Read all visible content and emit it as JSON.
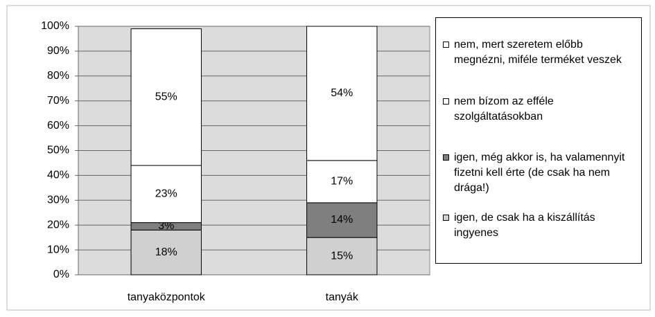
{
  "chart_data": {
    "type": "stacked_bar",
    "categories": [
      "tanyaközpontok",
      "tanyák"
    ],
    "series": [
      {
        "name": "igen, de csak ha a kiszállítás ingyenes",
        "color": "#d0d0d0",
        "values": [
          18,
          15
        ],
        "value_labels": [
          "18%",
          "15%"
        ]
      },
      {
        "name": "igen, még akkor is, ha valamennyit fizetni kell érte (de csak ha nem drága!)",
        "color": "#7f7f7f",
        "values": [
          3,
          14
        ],
        "value_labels": [
          "3%",
          "14%"
        ]
      },
      {
        "name": "nem bízom az efféle szolgáltatásokban",
        "color": "#ffffff",
        "values": [
          23,
          17
        ],
        "value_labels": [
          "23%",
          "17%"
        ]
      },
      {
        "name": "nem, mert szeretem előbb megnézni, miféle terméket veszek",
        "color": "#ffffff",
        "values": [
          55,
          54
        ],
        "value_labels": [
          "55%",
          "54%"
        ]
      }
    ],
    "ylim": [
      0,
      100
    ],
    "yticks": [
      {
        "value": 0,
        "label": "0%"
      },
      {
        "value": 10,
        "label": "10%"
      },
      {
        "value": 20,
        "label": "20%"
      },
      {
        "value": 30,
        "label": "30%"
      },
      {
        "value": 40,
        "label": "40%"
      },
      {
        "value": 50,
        "label": "50%"
      },
      {
        "value": 60,
        "label": "60%"
      },
      {
        "value": 70,
        "label": "70%"
      },
      {
        "value": 80,
        "label": "80%"
      },
      {
        "value": 90,
        "label": "90%"
      },
      {
        "value": 100,
        "label": "100%"
      }
    ],
    "grid": true,
    "legend": "right"
  }
}
